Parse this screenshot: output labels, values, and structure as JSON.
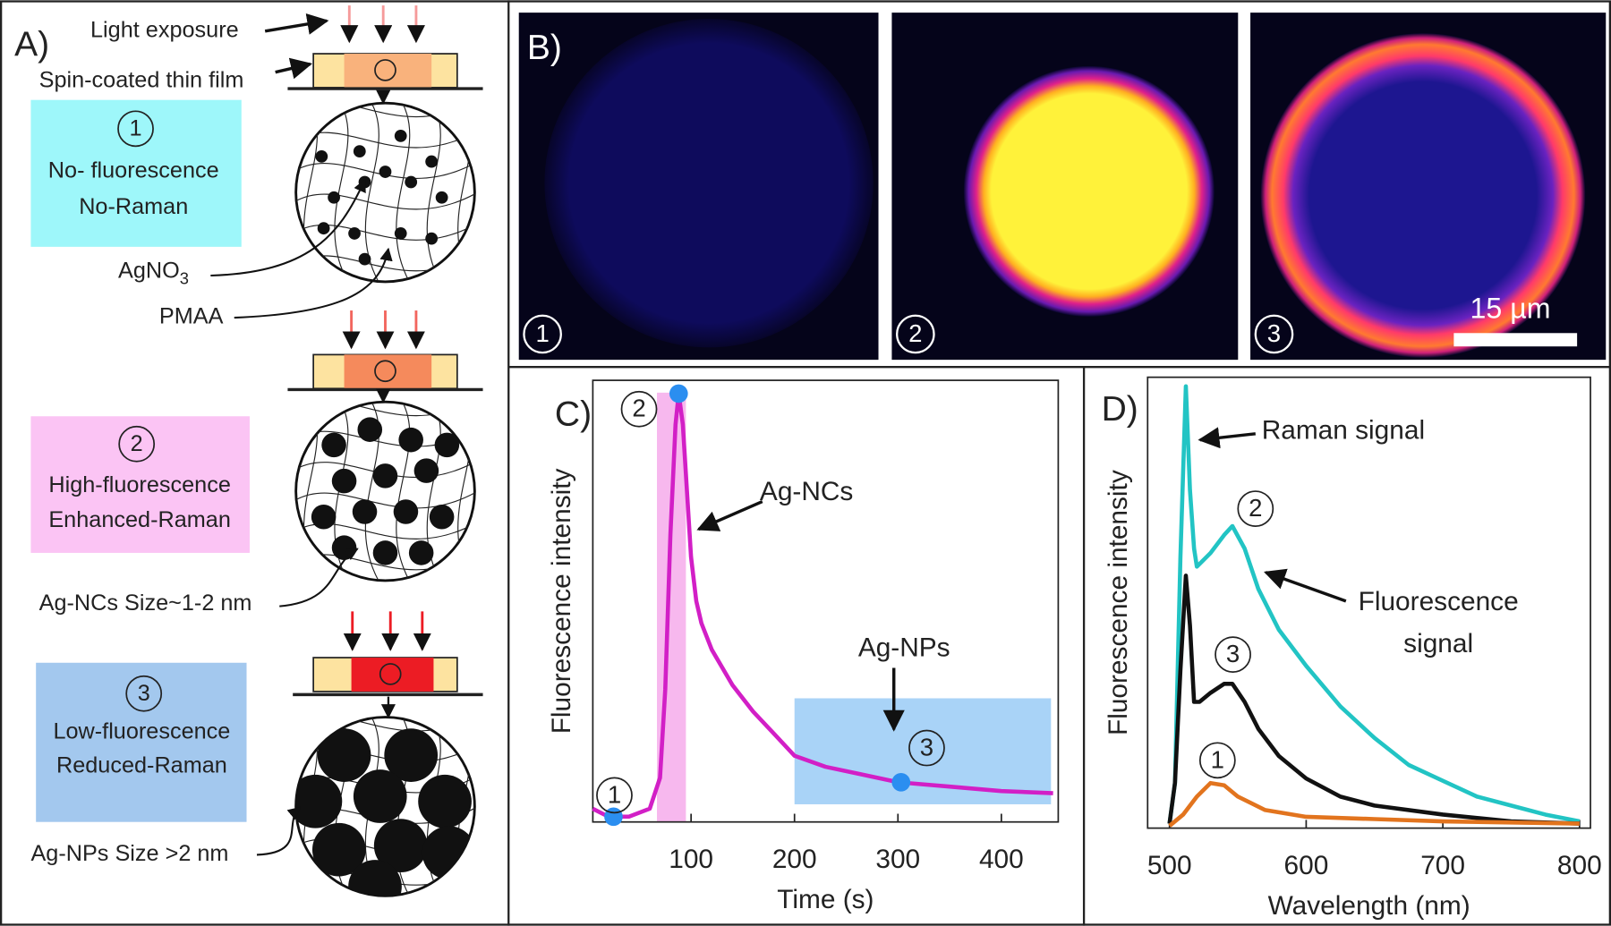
{
  "panel_a": {
    "label": "A)",
    "light_exposure": "Light exposure",
    "film": "Spin-coated thin film",
    "stages": [
      {
        "number": "1",
        "lines": [
          "No- fluorescence",
          "No-Raman"
        ]
      },
      {
        "number": "2",
        "lines": [
          "High-fluorescence",
          "Enhanced-Raman"
        ]
      },
      {
        "number": "3",
        "lines": [
          "Low-fluorescence",
          "Reduced-Raman"
        ]
      }
    ],
    "agno3": {
      "text": "AgNO",
      "sub": "3"
    },
    "pmaa": "PMAA",
    "ag_ncs": "Ag-NCs Size~1-2 nm",
    "ag_nps": "Ag-NPs Size >2 nm"
  },
  "panel_b": {
    "label": "B)",
    "numbers": [
      "1",
      "2",
      "3"
    ],
    "scale_bar": "15 µm"
  },
  "chart_data": [
    {
      "type": "line",
      "label": "C)",
      "xlabel": "Time (s)",
      "ylabel": "Fluorescence intensity",
      "xlim": [
        5,
        455
      ],
      "ylim": [
        0,
        100
      ],
      "xticks": [
        100,
        200,
        300,
        400
      ],
      "x": [
        5,
        20,
        40,
        60,
        70,
        75,
        80,
        85,
        88,
        92,
        96,
        100,
        105,
        110,
        120,
        140,
        160,
        180,
        200,
        230,
        260,
        300,
        350,
        400,
        450
      ],
      "values": [
        3,
        1.2,
        1.2,
        3,
        10,
        30,
        65,
        90,
        97,
        90,
        75,
        60,
        50,
        45,
        39,
        31,
        25,
        20,
        15,
        12.5,
        11,
        9,
        8,
        7,
        6.5
      ],
      "color": "#d21fc6",
      "markers": {
        "x": [
          25,
          88,
          303
        ],
        "values": [
          1.2,
          97,
          9
        ],
        "color": "#2b8ef0",
        "labels": [
          "1",
          "2",
          "3"
        ]
      },
      "regions": [
        {
          "x": [
            67,
            95
          ],
          "color": "#f7b8ee"
        },
        {
          "x": [
            200,
            448
          ],
          "y": [
            4,
            28
          ],
          "color": "#a9d3f7"
        }
      ],
      "annotations": [
        "Ag-NCs",
        "Ag-NPs"
      ]
    },
    {
      "type": "line",
      "label": "D)",
      "xlabel": "Wavelength (nm)",
      "ylabel": "Fluorescence intensity",
      "xlim": [
        484,
        808
      ],
      "ylim": [
        0,
        100
      ],
      "xticks": [
        500,
        600,
        700,
        800
      ],
      "series": [
        {
          "name": "2",
          "color": "#22c4c4",
          "x": [
            500,
            504,
            508,
            512,
            515,
            518,
            520,
            530,
            540,
            546,
            555,
            565,
            580,
            600,
            625,
            650,
            675,
            700,
            725,
            750,
            775,
            800
          ],
          "values": [
            1,
            10,
            60,
            98,
            75,
            62,
            58,
            61,
            65,
            67,
            62,
            53,
            44,
            36,
            27,
            20,
            14,
            10.5,
            7,
            5,
            3,
            1.5
          ]
        },
        {
          "name": "3",
          "color": "#111111",
          "x": [
            500,
            504,
            508,
            512,
            515,
            518,
            522,
            530,
            540,
            546,
            555,
            565,
            580,
            600,
            625,
            650,
            700,
            750,
            800
          ],
          "values": [
            1,
            10,
            35,
            56,
            45,
            28,
            28,
            30,
            32,
            32,
            28,
            22,
            16,
            11,
            7,
            5,
            3,
            1.5,
            1
          ]
        },
        {
          "name": "1",
          "color": "#e2741e",
          "x": [
            500,
            510,
            520,
            530,
            540,
            550,
            570,
            600,
            650,
            700,
            800
          ],
          "values": [
            0.5,
            3,
            7,
            10,
            9.5,
            7,
            4,
            2.5,
            2,
            1.5,
            1
          ]
        }
      ],
      "annotations": [
        "Raman signal",
        "Fluorescence",
        "signal"
      ]
    }
  ]
}
